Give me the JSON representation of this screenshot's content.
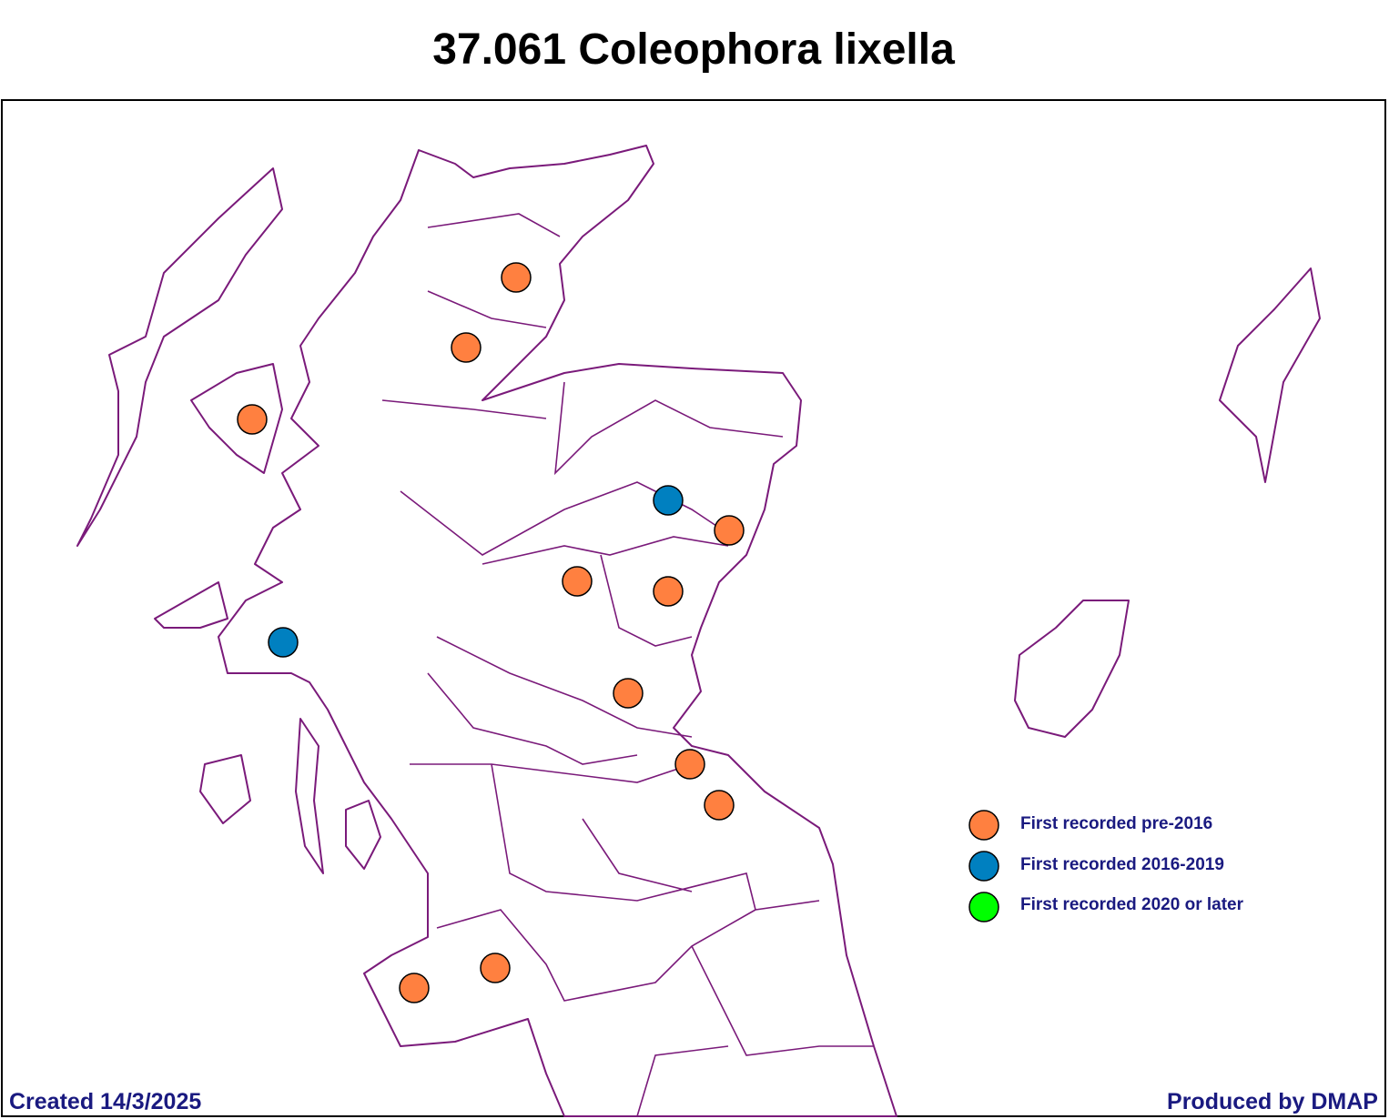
{
  "title": "37.061 Coleophora lixella",
  "legend": [
    "First recorded pre-2016",
    "First recorded 2016-2019",
    "First recorded 2020 or later"
  ],
  "footer": {
    "created": "Created 14/3/2025",
    "produced": "Produced by DMAP"
  }
}
